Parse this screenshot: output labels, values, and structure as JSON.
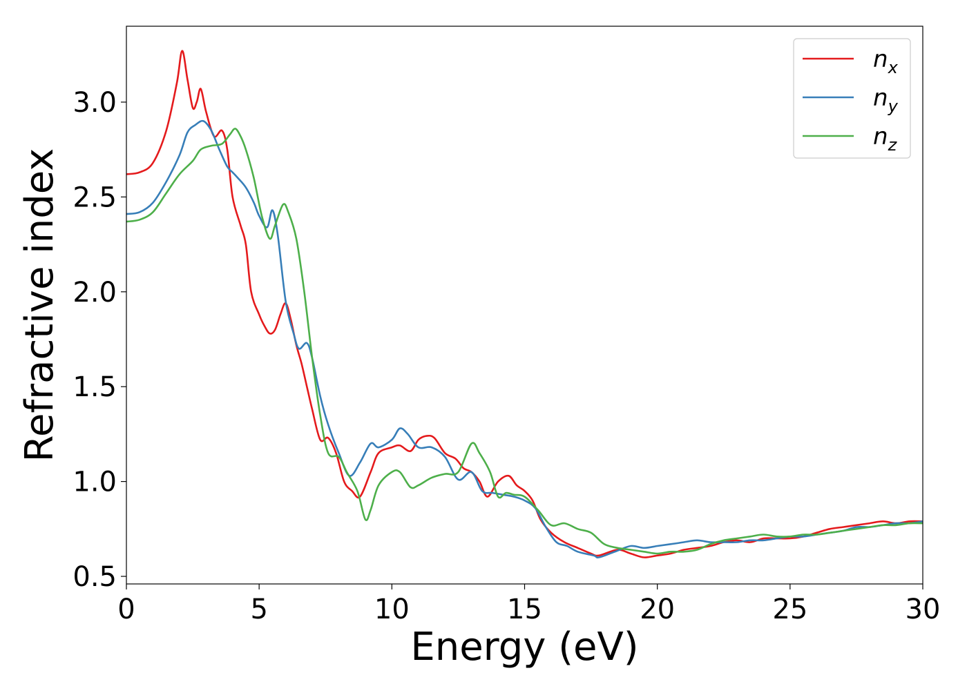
{
  "chart_data": {
    "type": "line",
    "xlabel": "Energy (eV)",
    "ylabel": "Refractive index",
    "xlim": [
      0,
      30
    ],
    "ylim": [
      0.46,
      3.4
    ],
    "xticks": [
      0,
      5,
      10,
      15,
      20,
      25,
      30
    ],
    "xtick_labels": [
      "0",
      "5",
      "10",
      "15",
      "20",
      "25",
      "30"
    ],
    "yticks": [
      0.5,
      1.0,
      1.5,
      2.0,
      2.5,
      3.0
    ],
    "ytick_labels": [
      "0.5",
      "1.0",
      "1.5",
      "2.0",
      "2.5",
      "3.0"
    ],
    "grid": false,
    "legend_position": "top-right",
    "series": [
      {
        "name": "n",
        "subscript": "x",
        "color": "#e41a1c",
        "points": [
          [
            0,
            2.62
          ],
          [
            0.5,
            2.63
          ],
          [
            1.0,
            2.68
          ],
          [
            1.5,
            2.85
          ],
          [
            1.9,
            3.1
          ],
          [
            2.1,
            3.27
          ],
          [
            2.3,
            3.12
          ],
          [
            2.5,
            2.97
          ],
          [
            2.65,
            3.0
          ],
          [
            2.8,
            3.07
          ],
          [
            3.0,
            2.95
          ],
          [
            3.3,
            2.82
          ],
          [
            3.6,
            2.85
          ],
          [
            3.8,
            2.75
          ],
          [
            4.0,
            2.5
          ],
          [
            4.3,
            2.35
          ],
          [
            4.5,
            2.25
          ],
          [
            4.7,
            2.0
          ],
          [
            5.0,
            1.88
          ],
          [
            5.2,
            1.82
          ],
          [
            5.4,
            1.78
          ],
          [
            5.6,
            1.8
          ],
          [
            5.8,
            1.88
          ],
          [
            6.0,
            1.94
          ],
          [
            6.2,
            1.85
          ],
          [
            6.4,
            1.72
          ],
          [
            6.6,
            1.62
          ],
          [
            6.8,
            1.5
          ],
          [
            7.0,
            1.38
          ],
          [
            7.3,
            1.22
          ],
          [
            7.6,
            1.23
          ],
          [
            7.9,
            1.15
          ],
          [
            8.2,
            1.0
          ],
          [
            8.5,
            0.95
          ],
          [
            8.8,
            0.92
          ],
          [
            9.2,
            1.05
          ],
          [
            9.5,
            1.15
          ],
          [
            10.0,
            1.18
          ],
          [
            10.3,
            1.19
          ],
          [
            10.7,
            1.16
          ],
          [
            11.0,
            1.22
          ],
          [
            11.3,
            1.24
          ],
          [
            11.6,
            1.23
          ],
          [
            12.0,
            1.15
          ],
          [
            12.4,
            1.12
          ],
          [
            12.7,
            1.07
          ],
          [
            13.0,
            1.05
          ],
          [
            13.3,
            1.0
          ],
          [
            13.6,
            0.92
          ],
          [
            14.0,
            1.0
          ],
          [
            14.4,
            1.03
          ],
          [
            14.7,
            0.98
          ],
          [
            15.0,
            0.95
          ],
          [
            15.3,
            0.9
          ],
          [
            15.6,
            0.8
          ],
          [
            16.0,
            0.73
          ],
          [
            16.5,
            0.68
          ],
          [
            17.0,
            0.65
          ],
          [
            17.5,
            0.62
          ],
          [
            17.8,
            0.61
          ],
          [
            18.5,
            0.64
          ],
          [
            19.0,
            0.62
          ],
          [
            19.5,
            0.6
          ],
          [
            20.0,
            0.61
          ],
          [
            20.5,
            0.62
          ],
          [
            21.0,
            0.64
          ],
          [
            21.5,
            0.65
          ],
          [
            22.0,
            0.66
          ],
          [
            22.5,
            0.68
          ],
          [
            23.0,
            0.69
          ],
          [
            23.5,
            0.68
          ],
          [
            24.0,
            0.7
          ],
          [
            24.5,
            0.7
          ],
          [
            25.0,
            0.7
          ],
          [
            25.5,
            0.71
          ],
          [
            26.0,
            0.73
          ],
          [
            26.5,
            0.75
          ],
          [
            27.0,
            0.76
          ],
          [
            27.5,
            0.77
          ],
          [
            28.0,
            0.78
          ],
          [
            28.5,
            0.79
          ],
          [
            29.0,
            0.78
          ],
          [
            29.5,
            0.79
          ],
          [
            30.0,
            0.79
          ]
        ]
      },
      {
        "name": "n",
        "subscript": "y",
        "color": "#377eb8",
        "points": [
          [
            0,
            2.41
          ],
          [
            0.5,
            2.42
          ],
          [
            1.0,
            2.47
          ],
          [
            1.5,
            2.58
          ],
          [
            2.0,
            2.72
          ],
          [
            2.3,
            2.84
          ],
          [
            2.6,
            2.88
          ],
          [
            2.9,
            2.9
          ],
          [
            3.2,
            2.85
          ],
          [
            3.5,
            2.75
          ],
          [
            3.8,
            2.66
          ],
          [
            4.0,
            2.63
          ],
          [
            4.2,
            2.6
          ],
          [
            4.5,
            2.55
          ],
          [
            4.8,
            2.47
          ],
          [
            5.0,
            2.4
          ],
          [
            5.3,
            2.34
          ],
          [
            5.5,
            2.43
          ],
          [
            5.7,
            2.3
          ],
          [
            6.0,
            1.95
          ],
          [
            6.3,
            1.78
          ],
          [
            6.5,
            1.7
          ],
          [
            6.8,
            1.73
          ],
          [
            7.0,
            1.65
          ],
          [
            7.3,
            1.45
          ],
          [
            7.6,
            1.3
          ],
          [
            8.0,
            1.15
          ],
          [
            8.4,
            1.03
          ],
          [
            8.8,
            1.1
          ],
          [
            9.2,
            1.2
          ],
          [
            9.5,
            1.18
          ],
          [
            10.0,
            1.22
          ],
          [
            10.3,
            1.28
          ],
          [
            10.6,
            1.25
          ],
          [
            11.0,
            1.18
          ],
          [
            11.5,
            1.18
          ],
          [
            12.0,
            1.13
          ],
          [
            12.5,
            1.01
          ],
          [
            13.0,
            1.05
          ],
          [
            13.4,
            0.95
          ],
          [
            13.8,
            0.94
          ],
          [
            14.2,
            0.93
          ],
          [
            14.6,
            0.92
          ],
          [
            15.0,
            0.9
          ],
          [
            15.4,
            0.86
          ],
          [
            15.8,
            0.76
          ],
          [
            16.2,
            0.68
          ],
          [
            16.6,
            0.66
          ],
          [
            17.0,
            0.63
          ],
          [
            17.6,
            0.61
          ],
          [
            17.8,
            0.6
          ],
          [
            18.4,
            0.63
          ],
          [
            19.0,
            0.66
          ],
          [
            19.5,
            0.65
          ],
          [
            20.0,
            0.66
          ],
          [
            20.5,
            0.67
          ],
          [
            21.0,
            0.68
          ],
          [
            21.5,
            0.69
          ],
          [
            22.0,
            0.68
          ],
          [
            22.5,
            0.68
          ],
          [
            23.0,
            0.68
          ],
          [
            23.5,
            0.69
          ],
          [
            24.0,
            0.69
          ],
          [
            24.5,
            0.7
          ],
          [
            25.0,
            0.71
          ],
          [
            25.5,
            0.71
          ],
          [
            26.0,
            0.72
          ],
          [
            26.5,
            0.73
          ],
          [
            27.0,
            0.74
          ],
          [
            27.5,
            0.76
          ],
          [
            28.0,
            0.76
          ],
          [
            28.5,
            0.77
          ],
          [
            29.0,
            0.78
          ],
          [
            29.5,
            0.78
          ],
          [
            30.0,
            0.79
          ]
        ]
      },
      {
        "name": "n",
        "subscript": "z",
        "color": "#4daf4a",
        "points": [
          [
            0,
            2.37
          ],
          [
            0.5,
            2.38
          ],
          [
            1.0,
            2.42
          ],
          [
            1.5,
            2.52
          ],
          [
            2.0,
            2.62
          ],
          [
            2.5,
            2.69
          ],
          [
            2.8,
            2.75
          ],
          [
            3.2,
            2.77
          ],
          [
            3.6,
            2.78
          ],
          [
            3.9,
            2.83
          ],
          [
            4.1,
            2.86
          ],
          [
            4.3,
            2.82
          ],
          [
            4.5,
            2.75
          ],
          [
            4.8,
            2.6
          ],
          [
            5.1,
            2.4
          ],
          [
            5.4,
            2.28
          ],
          [
            5.6,
            2.35
          ],
          [
            5.9,
            2.46
          ],
          [
            6.1,
            2.42
          ],
          [
            6.4,
            2.28
          ],
          [
            6.7,
            2.0
          ],
          [
            7.0,
            1.65
          ],
          [
            7.3,
            1.35
          ],
          [
            7.6,
            1.15
          ],
          [
            8.0,
            1.13
          ],
          [
            8.3,
            1.05
          ],
          [
            8.7,
            0.95
          ],
          [
            9.0,
            0.8
          ],
          [
            9.2,
            0.85
          ],
          [
            9.5,
            0.98
          ],
          [
            10.0,
            1.05
          ],
          [
            10.3,
            1.05
          ],
          [
            10.7,
            0.97
          ],
          [
            11.0,
            0.98
          ],
          [
            11.5,
            1.02
          ],
          [
            12.0,
            1.04
          ],
          [
            12.5,
            1.05
          ],
          [
            13.0,
            1.2
          ],
          [
            13.3,
            1.15
          ],
          [
            13.7,
            1.05
          ],
          [
            14.0,
            0.92
          ],
          [
            14.3,
            0.94
          ],
          [
            14.6,
            0.93
          ],
          [
            15.0,
            0.92
          ],
          [
            15.5,
            0.85
          ],
          [
            16.0,
            0.77
          ],
          [
            16.5,
            0.78
          ],
          [
            17.0,
            0.75
          ],
          [
            17.5,
            0.73
          ],
          [
            18.0,
            0.67
          ],
          [
            18.5,
            0.65
          ],
          [
            19.0,
            0.64
          ],
          [
            19.5,
            0.63
          ],
          [
            20.0,
            0.62
          ],
          [
            20.5,
            0.63
          ],
          [
            21.0,
            0.63
          ],
          [
            21.5,
            0.64
          ],
          [
            22.0,
            0.67
          ],
          [
            22.5,
            0.69
          ],
          [
            23.0,
            0.7
          ],
          [
            23.5,
            0.71
          ],
          [
            24.0,
            0.72
          ],
          [
            24.5,
            0.71
          ],
          [
            25.0,
            0.71
          ],
          [
            25.5,
            0.72
          ],
          [
            26.0,
            0.72
          ],
          [
            26.5,
            0.73
          ],
          [
            27.0,
            0.74
          ],
          [
            27.5,
            0.75
          ],
          [
            28.0,
            0.76
          ],
          [
            28.5,
            0.77
          ],
          [
            29.0,
            0.77
          ],
          [
            29.5,
            0.78
          ],
          [
            30.0,
            0.78
          ]
        ]
      }
    ]
  }
}
